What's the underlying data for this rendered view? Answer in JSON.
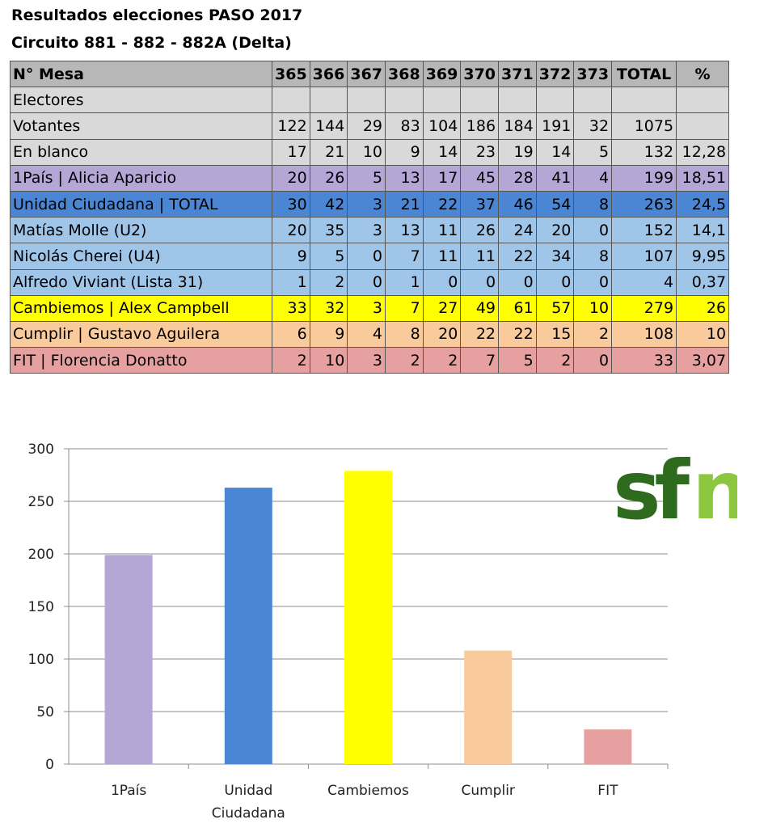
{
  "title": "Resultados elecciones PASO 2017",
  "subtitle": "Circuito 881 - 882 - 882A  (Delta)",
  "table": {
    "header": {
      "label": "N° Mesa",
      "cells": [
        "365",
        "366",
        "367",
        "368",
        "369",
        "370",
        "371",
        "372",
        "373",
        "TOTAL",
        "%"
      ]
    },
    "rows": [
      {
        "label": "Electores",
        "cells": [
          "",
          "",
          "",
          "",
          "",
          "",
          "",
          "",
          "",
          "",
          ""
        ],
        "color": "#d9d9d9"
      },
      {
        "label": "Votantes",
        "cells": [
          "122",
          "144",
          "29",
          "83",
          "104",
          "186",
          "184",
          "191",
          "32",
          "1075",
          ""
        ],
        "color": "#d9d9d9"
      },
      {
        "label": "En blanco",
        "cells": [
          "17",
          "21",
          "10",
          "9",
          "14",
          "23",
          "19",
          "14",
          "5",
          "132",
          "12,28"
        ],
        "color": "#d9d9d9"
      },
      {
        "label": "1País | Alicia Aparicio",
        "cells": [
          "20",
          "26",
          "5",
          "13",
          "17",
          "45",
          "28",
          "41",
          "4",
          "199",
          "18,51"
        ],
        "color": "#b4a7d6"
      },
      {
        "label": "Unidad Ciudadana | TOTAL",
        "cells": [
          "30",
          "42",
          "3",
          "21",
          "22",
          "37",
          "46",
          "54",
          "8",
          "263",
          "24,5"
        ],
        "color": "#4a86d4"
      },
      {
        "label": "Matías Molle (U2)",
        "cells": [
          "20",
          "35",
          "3",
          "13",
          "11",
          "26",
          "24",
          "20",
          "0",
          "152",
          "14,1"
        ],
        "color": "#9fc5e8"
      },
      {
        "label": "Nicolás Cherei (U4)",
        "cells": [
          "9",
          "5",
          "0",
          "7",
          "11",
          "11",
          "22",
          "34",
          "8",
          "107",
          "9,95"
        ],
        "color": "#9fc5e8"
      },
      {
        "label": "Alfredo Viviant (Lista 31)",
        "cells": [
          "1",
          "2",
          "0",
          "1",
          "0",
          "0",
          "0",
          "0",
          "0",
          "4",
          "0,37"
        ],
        "color": "#9fc5e8"
      },
      {
        "label": "Cambiemos | Alex Campbell",
        "cells": [
          "33",
          "32",
          "3",
          "7",
          "27",
          "49",
          "61",
          "57",
          "10",
          "279",
          "26"
        ],
        "color": "#ffff00"
      },
      {
        "label": "Cumplir | Gustavo Aguilera",
        "cells": [
          "6",
          "9",
          "4",
          "8",
          "20",
          "22",
          "22",
          "15",
          "2",
          "108",
          "10"
        ],
        "color": "#f9cb9c"
      },
      {
        "label": "FIT | Florencia Donatto",
        "cells": [
          "2",
          "10",
          "3",
          "2",
          "2",
          "7",
          "5",
          "2",
          "0",
          "33",
          "3,07"
        ],
        "color": "#e6a0a0"
      }
    ],
    "header_color": "#b7b7b7"
  },
  "chart_data": {
    "type": "bar",
    "categories": [
      "1País",
      "Unidad\nCiudadana",
      "Cambiemos",
      "Cumplir",
      "FIT"
    ],
    "values": [
      199,
      263,
      279,
      108,
      33
    ],
    "colors": [
      "#b4a7d6",
      "#4a86d4",
      "#ffff00",
      "#f9cb9c",
      "#e6a0a0"
    ],
    "ylim": [
      0,
      300
    ],
    "yticks": [
      0,
      50,
      100,
      150,
      200,
      250,
      300
    ],
    "grid": true,
    "legend": "none"
  },
  "logo": {
    "text": "sfn",
    "color_dark": "#2e6b1e",
    "color_light": "#8dc63f"
  }
}
